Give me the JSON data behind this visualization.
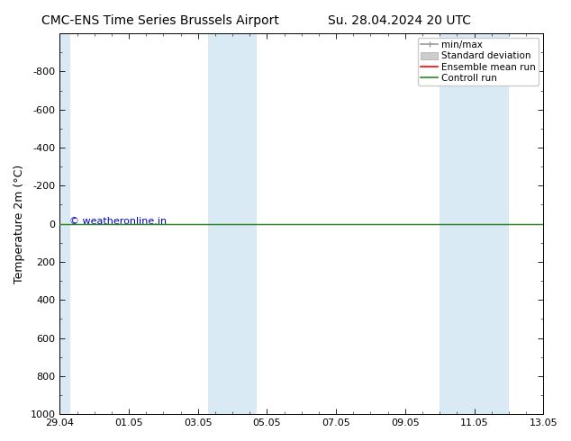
{
  "title_left": "CMC-ENS Time Series Brussels Airport",
  "title_right": "Su. 28.04.2024 20 UTC",
  "ylabel": "Temperature 2m (°C)",
  "watermark": "© weatheronline.in",
  "watermark_color": "#0000cc",
  "xtick_labels": [
    "29.04",
    "01.05",
    "03.05",
    "05.05",
    "07.05",
    "09.05",
    "11.05",
    "13.05"
  ],
  "xtick_positions": [
    0,
    2,
    4,
    6,
    8,
    10,
    12,
    14
  ],
  "ylim_bottom": -1000,
  "ylim_top": 1000,
  "ytick_values": [
    -800,
    -600,
    -400,
    -200,
    0,
    200,
    400,
    600,
    800,
    1000
  ],
  "y_invert": true,
  "background_color": "#ffffff",
  "plot_bg_color": "#ffffff",
  "shaded_regions": [
    {
      "x_start": 0.0,
      "x_end": 0.3,
      "color": "#daeaf5"
    },
    {
      "x_start": 4.3,
      "x_end": 5.7,
      "color": "#daeaf5"
    },
    {
      "x_start": 11.0,
      "x_end": 13.0,
      "color": "#daeaf5"
    }
  ],
  "control_run_color": "#228b22",
  "ensemble_mean_color": "#ff0000",
  "minmax_color": "#999999",
  "std_dev_color": "#cccccc",
  "legend_labels": [
    "min/max",
    "Standard deviation",
    "Ensemble mean run",
    "Controll run"
  ],
  "legend_colors": [
    "#999999",
    "#cccccc",
    "#ff0000",
    "#228b22"
  ],
  "title_fontsize": 10,
  "axis_label_fontsize": 9,
  "tick_fontsize": 8,
  "legend_fontsize": 7.5,
  "watermark_fontsize": 8
}
